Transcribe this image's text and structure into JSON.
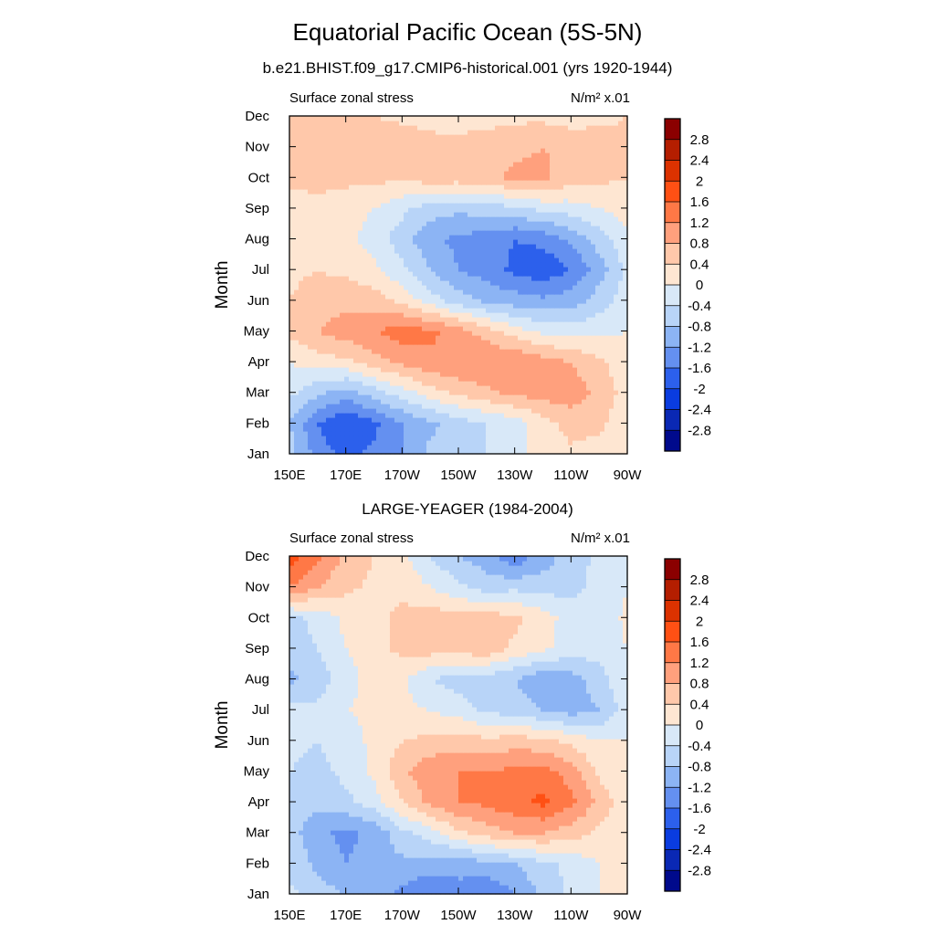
{
  "title": "Equatorial Pacific Ocean (5S-5N)",
  "colorbar": {
    "labels": [
      "2.8",
      "2.4",
      "2",
      "1.6",
      "1.2",
      "0.8",
      "0.4",
      "0",
      "-0.4",
      "-0.8",
      "-1.2",
      "-1.6",
      "-2",
      "-2.4",
      "-2.8"
    ],
    "colors": [
      "#8b0000",
      "#b41e00",
      "#dc3200",
      "#ff5014",
      "#ff7846",
      "#ffa07d",
      "#ffc8aa",
      "#fee6d2",
      "#d8e8f8",
      "#b8d4f8",
      "#8cb4f4",
      "#6490f0",
      "#2c60ec",
      "#0a3ce0",
      "#0a28b4",
      "#000a8c"
    ]
  },
  "chart_data": [
    {
      "type": "heatmap",
      "subtitle": "b.e21.BHIST.f09_g17.CMIP6-historical.001 (yrs 1920-1944)",
      "left_label": "Surface zonal stress",
      "units": "N/m² x.01",
      "ylabel": "Month",
      "x_ticks": [
        "150E",
        "170E",
        "170W",
        "150W",
        "130W",
        "110W",
        "90W"
      ],
      "y_ticks": [
        "Jan",
        "Feb",
        "Mar",
        "Apr",
        "May",
        "Jun",
        "Jul",
        "Aug",
        "Sep",
        "Oct",
        "Nov",
        "Dec"
      ],
      "levels": [
        -2.8,
        -2.4,
        -2,
        -1.6,
        -1.2,
        -0.8,
        -0.4,
        0,
        0.4,
        0.8,
        1.2,
        1.6,
        2,
        2.4,
        2.8
      ],
      "grid": [
        [
          -0.6,
          -1.4,
          -1.7,
          -1.5,
          -1.2,
          -0.7,
          -0.5,
          -0.4,
          -0.1,
          0.1,
          0.3,
          0.2,
          0.1
        ],
        [
          -0.8,
          -1.6,
          -2.0,
          -1.7,
          -1.2,
          -0.9,
          -0.6,
          -0.4,
          -0.2,
          0.2,
          0.6,
          0.5,
          0.1
        ],
        [
          -0.3,
          -0.7,
          -1.0,
          -0.6,
          -0.2,
          0.2,
          0.5,
          0.7,
          0.9,
          1.0,
          1.0,
          0.7,
          0.2
        ],
        [
          0.0,
          0.2,
          0.3,
          0.6,
          0.9,
          1.1,
          1.2,
          1.2,
          1.2,
          1.0,
          0.8,
          0.5,
          0.1
        ],
        [
          0.5,
          0.8,
          1.0,
          1.2,
          1.4,
          1.3,
          1.0,
          0.6,
          0.2,
          -0.1,
          -0.2,
          -0.1,
          0.0
        ],
        [
          0.4,
          0.6,
          0.7,
          0.6,
          0.3,
          -0.2,
          -0.6,
          -0.9,
          -1.0,
          -1.1,
          -1.0,
          -0.6,
          -0.2
        ],
        [
          0.3,
          0.4,
          0.3,
          0.1,
          -0.3,
          -0.8,
          -1.2,
          -1.4,
          -1.7,
          -1.9,
          -1.6,
          -1.0,
          -0.3
        ],
        [
          0.2,
          0.2,
          0.1,
          -0.2,
          -0.6,
          -1.1,
          -1.3,
          -1.4,
          -1.6,
          -1.5,
          -1.1,
          -0.6,
          -0.1
        ],
        [
          0.2,
          0.2,
          0.2,
          0.0,
          -0.3,
          -0.6,
          -0.7,
          -0.6,
          -0.5,
          -0.3,
          -0.2,
          0.0,
          0.2
        ],
        [
          0.5,
          0.6,
          0.5,
          0.5,
          0.5,
          0.6,
          0.6,
          0.7,
          0.9,
          0.9,
          0.6,
          0.5,
          0.4
        ],
        [
          0.6,
          0.7,
          0.7,
          0.7,
          0.7,
          0.6,
          0.6,
          0.7,
          0.7,
          0.8,
          0.7,
          0.6,
          0.5
        ],
        [
          0.4,
          0.5,
          0.5,
          0.4,
          0.3,
          0.2,
          0.1,
          0.2,
          0.3,
          0.3,
          0.2,
          0.3,
          0.4
        ]
      ]
    },
    {
      "type": "heatmap",
      "subtitle": "LARGE-YEAGER (1984-2004)",
      "left_label": "Surface zonal stress",
      "units": "N/m² x.01",
      "ylabel": "Month",
      "x_ticks": [
        "150E",
        "170E",
        "170W",
        "150W",
        "130W",
        "110W",
        "90W"
      ],
      "y_ticks": [
        "Jan",
        "Feb",
        "Mar",
        "Apr",
        "May",
        "Jun",
        "Jul",
        "Aug",
        "Sep",
        "Oct",
        "Nov",
        "Dec"
      ],
      "levels": [
        -2.8,
        -2.4,
        -2,
        -1.6,
        -1.2,
        -0.8,
        -0.4,
        0,
        0.4,
        0.8,
        1.2,
        1.6,
        2,
        2.4,
        2.8
      ],
      "grid": [
        [
          -0.3,
          -0.6,
          -0.8,
          -0.9,
          -1.3,
          -1.6,
          -1.3,
          -1.6,
          -1.2,
          -0.7,
          -0.3,
          0.0,
          0.2
        ],
        [
          -0.5,
          -0.9,
          -1.2,
          -1.0,
          -0.9,
          -1.0,
          -1.1,
          -0.9,
          -0.8,
          -0.5,
          -0.3,
          0.0,
          0.1
        ],
        [
          -0.6,
          -1.1,
          -1.3,
          -1.1,
          -0.5,
          -0.2,
          0.3,
          0.6,
          0.8,
          0.8,
          0.6,
          0.3,
          0.1
        ],
        [
          -0.5,
          -0.7,
          -0.5,
          -0.2,
          0.4,
          0.9,
          1.2,
          1.3,
          1.5,
          1.7,
          1.3,
          0.7,
          0.1
        ],
        [
          -0.4,
          -0.5,
          -0.3,
          0.1,
          0.7,
          1.1,
          1.2,
          1.2,
          1.3,
          1.4,
          1.0,
          0.3,
          0.0
        ],
        [
          -0.3,
          -0.4,
          -0.2,
          0.1,
          0.4,
          0.5,
          0.6,
          0.5,
          0.6,
          0.5,
          0.3,
          0.0,
          0.0
        ],
        [
          -0.3,
          -0.3,
          0.0,
          0.1,
          0.1,
          0.0,
          -0.2,
          -0.5,
          -0.6,
          -0.8,
          -1.0,
          -0.8,
          -0.2
        ],
        [
          -0.9,
          -0.6,
          -0.2,
          0.2,
          0.1,
          -0.4,
          -0.6,
          -0.6,
          -0.8,
          -1.1,
          -1.0,
          -0.6,
          0.0
        ],
        [
          -0.6,
          -0.4,
          0.0,
          0.3,
          0.5,
          0.6,
          0.6,
          0.7,
          0.3,
          0.1,
          -0.2,
          -0.2,
          0.0
        ],
        [
          -0.5,
          -0.3,
          0.1,
          0.3,
          0.5,
          0.6,
          0.6,
          0.6,
          0.5,
          0.2,
          -0.2,
          -0.3,
          0.1
        ],
        [
          1.2,
          0.8,
          0.5,
          0.3,
          0.3,
          0.0,
          -0.3,
          -0.6,
          -0.5,
          -0.6,
          -0.5,
          -0.3,
          0.0
        ],
        [
          1.8,
          1.3,
          0.7,
          0.4,
          0.1,
          -0.4,
          -0.8,
          -1.0,
          -1.5,
          -1.0,
          -0.6,
          -0.3,
          0.0
        ]
      ]
    }
  ]
}
